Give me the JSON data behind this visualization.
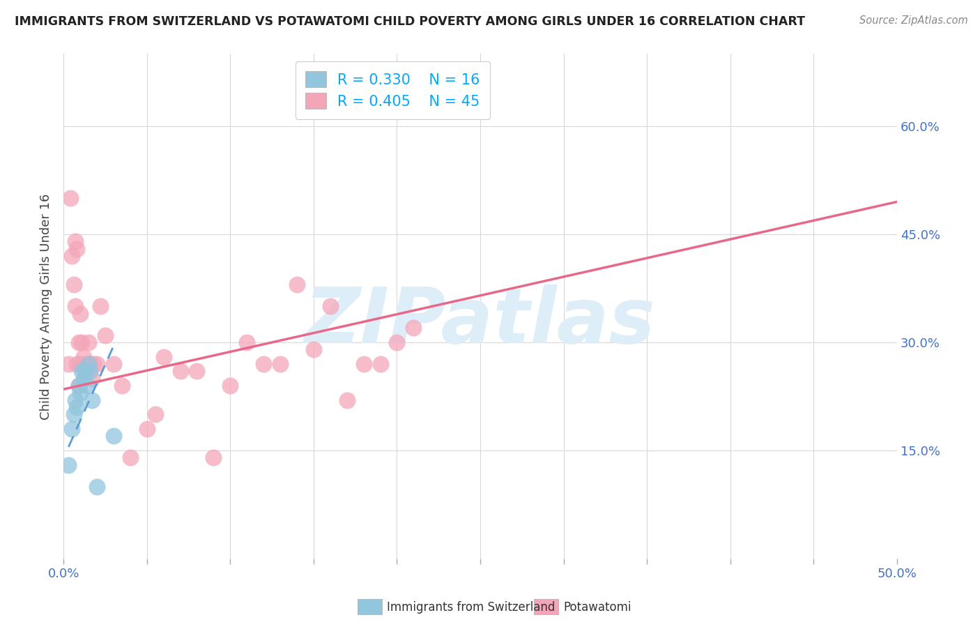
{
  "title": "IMMIGRANTS FROM SWITZERLAND VS POTAWATOMI CHILD POVERTY AMONG GIRLS UNDER 16 CORRELATION CHART",
  "source": "Source: ZipAtlas.com",
  "ylabel": "Child Poverty Among Girls Under 16",
  "xlim": [
    0.0,
    0.5
  ],
  "ylim": [
    0.0,
    0.7
  ],
  "xticks": [
    0.0,
    0.05,
    0.1,
    0.15,
    0.2,
    0.25,
    0.3,
    0.35,
    0.4,
    0.45,
    0.5
  ],
  "yticks_right": [
    0.15,
    0.3,
    0.45,
    0.6
  ],
  "ytick_labels_right": [
    "15.0%",
    "30.0%",
    "45.0%",
    "60.0%"
  ],
  "legend_r_blue": "R = 0.330",
  "legend_n_blue": "N = 16",
  "legend_r_pink": "R = 0.405",
  "legend_n_pink": "N = 45",
  "blue_color": "#92c5de",
  "pink_color": "#f4a6b8",
  "blue_line_color": "#5b9bd5",
  "pink_line_color": "#e8688a",
  "watermark_color": "#ddeef8",
  "blue_scatter_x": [
    0.003,
    0.005,
    0.006,
    0.007,
    0.008,
    0.009,
    0.01,
    0.011,
    0.012,
    0.013,
    0.014,
    0.015,
    0.016,
    0.017,
    0.02,
    0.03
  ],
  "blue_scatter_y": [
    0.13,
    0.18,
    0.2,
    0.22,
    0.21,
    0.24,
    0.23,
    0.26,
    0.25,
    0.26,
    0.24,
    0.27,
    0.26,
    0.22,
    0.1,
    0.17
  ],
  "pink_scatter_x": [
    0.003,
    0.004,
    0.005,
    0.006,
    0.007,
    0.007,
    0.008,
    0.008,
    0.009,
    0.009,
    0.01,
    0.01,
    0.011,
    0.012,
    0.013,
    0.014,
    0.015,
    0.015,
    0.016,
    0.017,
    0.018,
    0.02,
    0.022,
    0.025,
    0.03,
    0.035,
    0.04,
    0.05,
    0.055,
    0.06,
    0.07,
    0.08,
    0.09,
    0.1,
    0.11,
    0.12,
    0.13,
    0.14,
    0.15,
    0.16,
    0.17,
    0.18,
    0.19,
    0.2,
    0.21
  ],
  "pink_scatter_y": [
    0.27,
    0.5,
    0.42,
    0.38,
    0.35,
    0.44,
    0.27,
    0.43,
    0.24,
    0.3,
    0.27,
    0.34,
    0.3,
    0.28,
    0.26,
    0.27,
    0.3,
    0.27,
    0.27,
    0.25,
    0.27,
    0.27,
    0.35,
    0.31,
    0.27,
    0.24,
    0.14,
    0.18,
    0.2,
    0.28,
    0.26,
    0.26,
    0.14,
    0.24,
    0.3,
    0.27,
    0.27,
    0.38,
    0.29,
    0.35,
    0.22,
    0.27,
    0.27,
    0.3,
    0.32
  ],
  "blue_trend_x_start": 0.003,
  "blue_trend_x_end": 0.03,
  "blue_trend_y_start": 0.155,
  "blue_trend_y_end": 0.295,
  "pink_trend_x_start": 0.0,
  "pink_trend_x_end": 0.5,
  "pink_trend_y_start": 0.235,
  "pink_trend_y_end": 0.495
}
